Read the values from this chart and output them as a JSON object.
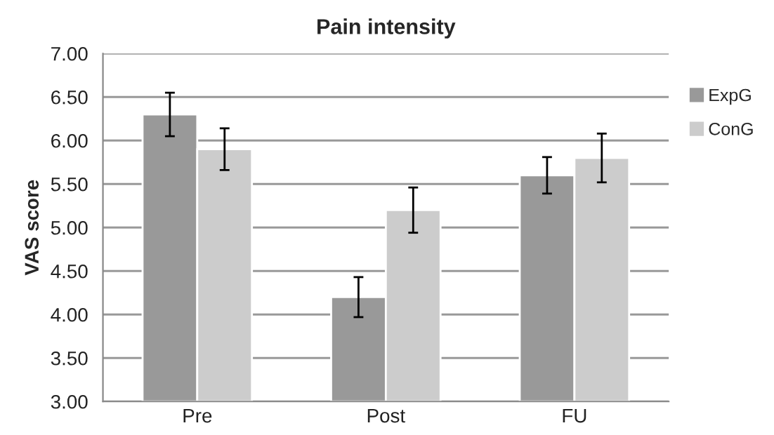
{
  "chart_data": {
    "type": "bar",
    "title": "Pain intensity",
    "ylabel": "VAS score",
    "categories": [
      "Pre",
      "Post",
      "FU"
    ],
    "series": [
      {
        "name": "ExpG",
        "color": "#999999",
        "values": [
          6.3,
          4.2,
          5.6
        ],
        "errors": [
          0.25,
          0.23,
          0.21
        ]
      },
      {
        "name": "ConG",
        "color": "#cccccc",
        "values": [
          5.9,
          5.2,
          5.8
        ],
        "errors": [
          0.24,
          0.26,
          0.28
        ]
      }
    ],
    "ylim": [
      3,
      7
    ],
    "yticks": [
      {
        "value": 3,
        "label": "3.00"
      },
      {
        "value": 3.5,
        "label": "3.50"
      },
      {
        "value": 4,
        "label": "4.00"
      },
      {
        "value": 4.5,
        "label": "4.50"
      },
      {
        "value": 5,
        "label": "5.00"
      },
      {
        "value": 5.5,
        "label": "5.50"
      },
      {
        "value": 6,
        "label": "6.00"
      },
      {
        "value": 6.5,
        "label": "6.50"
      },
      {
        "value": 7,
        "label": "7.00"
      }
    ],
    "grid": "y",
    "legend": "right"
  }
}
